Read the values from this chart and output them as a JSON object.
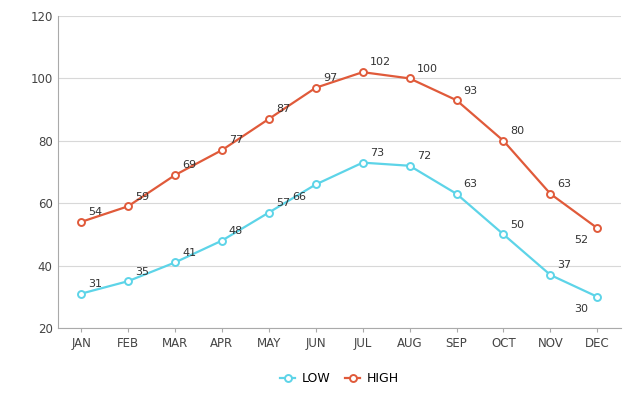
{
  "months": [
    "JAN",
    "FEB",
    "MAR",
    "APR",
    "MAY",
    "JUN",
    "JUL",
    "AUG",
    "SEP",
    "OCT",
    "NOV",
    "DEC"
  ],
  "low": [
    31,
    35,
    41,
    48,
    57,
    66,
    73,
    72,
    63,
    50,
    37,
    30
  ],
  "high": [
    54,
    59,
    69,
    77,
    87,
    97,
    102,
    100,
    93,
    80,
    63,
    52
  ],
  "low_color": "#5dd4e8",
  "high_color": "#e05a3a",
  "ylim": [
    20,
    120
  ],
  "yticks": [
    20,
    40,
    60,
    80,
    100,
    120
  ],
  "legend_low": "LOW",
  "legend_high": "HIGH",
  "background_color": "#ffffff",
  "grid_color": "#d8d8d8",
  "marker": "o",
  "marker_size": 5,
  "linewidth": 1.6,
  "label_fontsize": 8,
  "tick_fontsize": 8.5,
  "legend_fontsize": 9
}
